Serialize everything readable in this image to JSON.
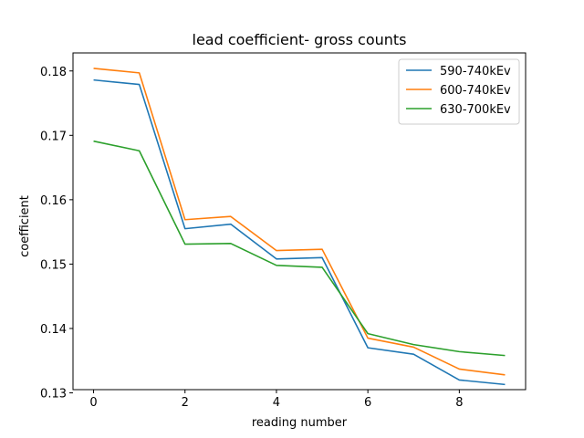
{
  "chart_data": {
    "type": "line",
    "title": "lead coefficient- gross counts",
    "xlabel": "reading number",
    "ylabel": "coefficient",
    "x": [
      0,
      1,
      2,
      3,
      4,
      5,
      6,
      7,
      8,
      9
    ],
    "xlim": [
      -0.45,
      9.45
    ],
    "ylim": [
      0.1305,
      0.1828
    ],
    "xticks": [
      0,
      2,
      4,
      6,
      8
    ],
    "xtick_labels": [
      "0",
      "2",
      "4",
      "6",
      "8"
    ],
    "yticks": [
      0.13,
      0.14,
      0.15,
      0.16,
      0.17,
      0.18
    ],
    "ytick_labels": [
      "0.13",
      "0.14",
      "0.15",
      "0.16",
      "0.17",
      "0.18"
    ],
    "grid": false,
    "legend_position": "top-right",
    "series": [
      {
        "name": "590-740kEv",
        "color": "#1f77b4",
        "values": [
          0.1786,
          0.1779,
          0.1555,
          0.1562,
          0.1508,
          0.151,
          0.137,
          0.136,
          0.132,
          0.1313
        ]
      },
      {
        "name": "600-740kEv",
        "color": "#ff7f0e",
        "values": [
          0.1804,
          0.1797,
          0.1569,
          0.1574,
          0.1521,
          0.1523,
          0.1385,
          0.1371,
          0.1337,
          0.1328
        ]
      },
      {
        "name": "630-700kEv",
        "color": "#2ca02c",
        "values": [
          0.1691,
          0.1676,
          0.1531,
          0.1532,
          0.1498,
          0.1495,
          0.1392,
          0.1375,
          0.1364,
          0.1358
        ]
      }
    ]
  }
}
